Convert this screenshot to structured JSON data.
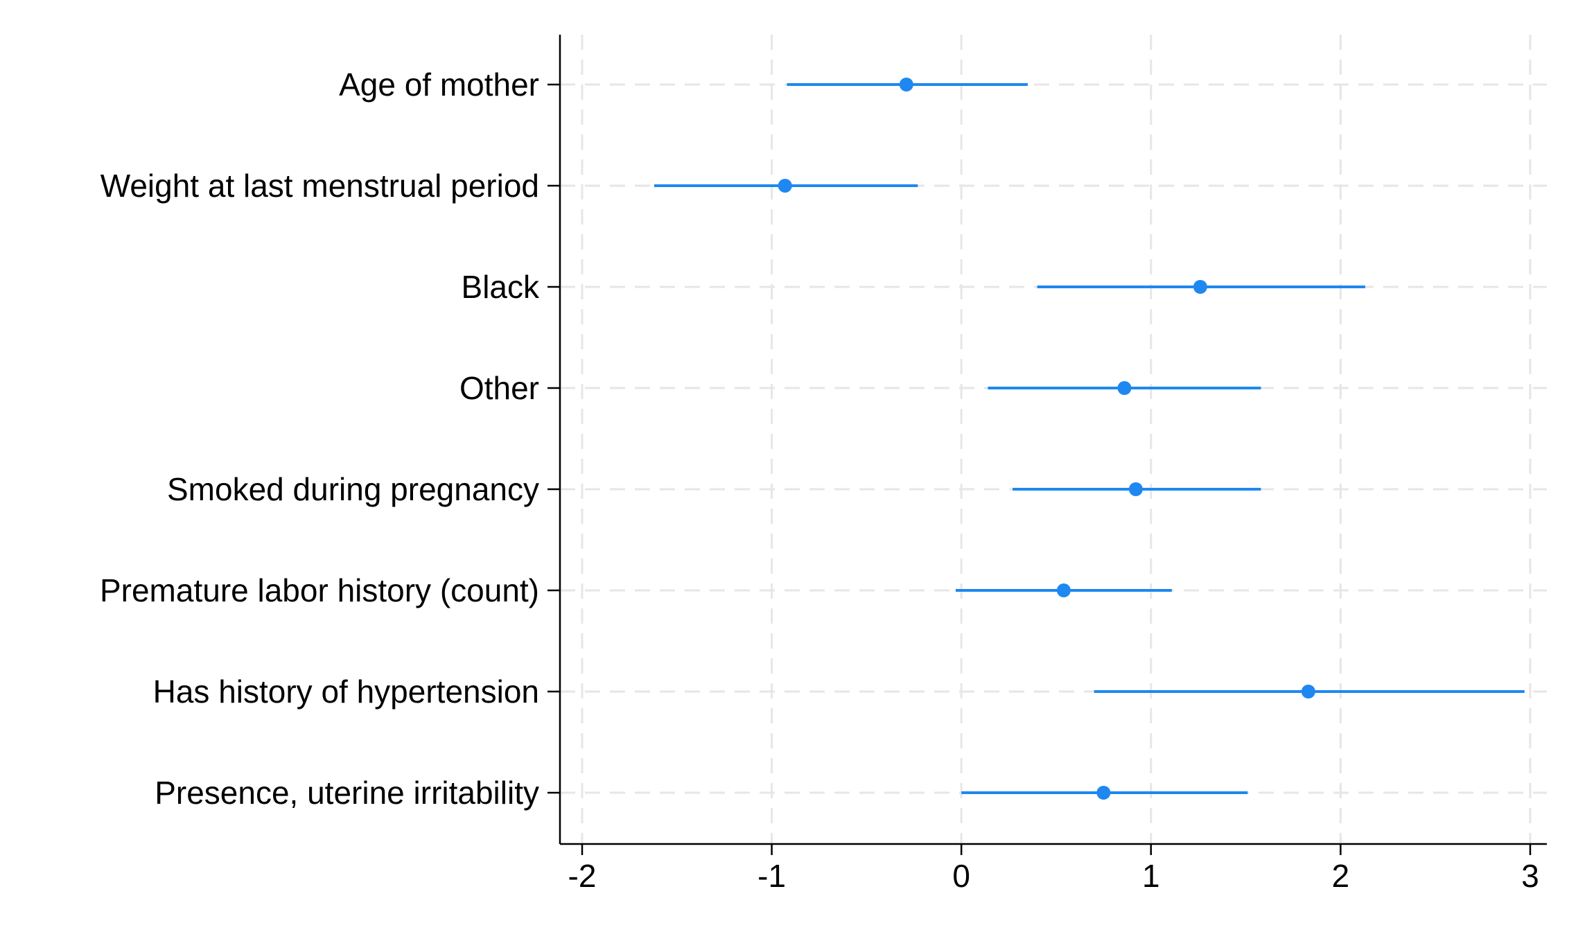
{
  "chart_data": {
    "type": "scatter",
    "subtype": "coefficient-plot-with-confidence-intervals",
    "title": "",
    "xlabel": "",
    "ylabel": "",
    "xlim": [
      -2.1,
      3.1
    ],
    "xticks": [
      -2,
      -1,
      0,
      1,
      2,
      3
    ],
    "xtick_labels": [
      "-2",
      "-1",
      "0",
      "1",
      "2",
      "3"
    ],
    "grid": true,
    "legend": "none",
    "categories": [
      "Age of mother",
      "Weight at last menstrual period",
      "Black",
      "Other",
      "Smoked during pregnancy",
      "Premature labor history (count)",
      "Has history of hypertension",
      "Presence, uterine irritability"
    ],
    "series": [
      {
        "estimates": [
          -0.29,
          -0.93,
          1.26,
          0.86,
          0.92,
          0.54,
          1.83,
          0.75
        ],
        "ci_low": [
          -0.92,
          -1.62,
          0.4,
          0.14,
          0.27,
          -0.03,
          0.7,
          0.0
        ],
        "ci_high": [
          0.35,
          -0.23,
          2.13,
          1.58,
          1.58,
          1.11,
          2.97,
          1.51
        ]
      }
    ],
    "colors": {
      "marker": "#1e88f0",
      "grid": "#e6e6e6",
      "axis": "#000000"
    }
  }
}
